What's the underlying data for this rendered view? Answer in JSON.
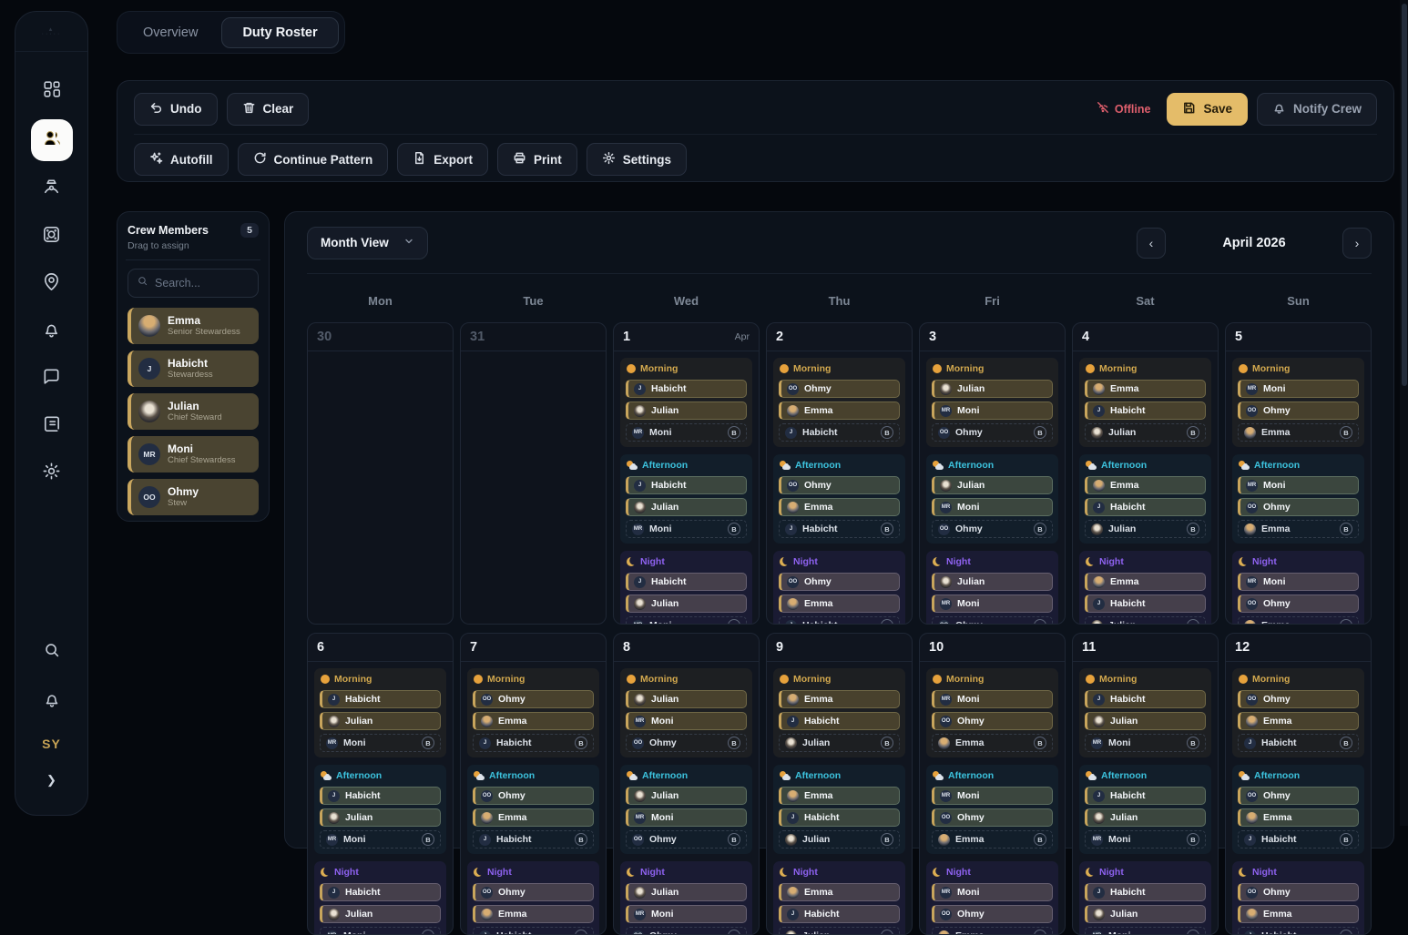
{
  "colors": {
    "page_bg": "#05080d",
    "panel_bg": "#0c121b",
    "accent_gold": "#c8a55c",
    "save_bg": "#e4bc69",
    "offline_red": "#df5f6d",
    "morning": "#d2a84e",
    "afternoon": "#3cc2dd",
    "night": "#8e62f0"
  },
  "icons": {
    "sidebar": [
      "dashboard-icon",
      "crew-users-icon",
      "captain-icon",
      "camera-icon",
      "map-pin-icon",
      "bell-icon",
      "chat-icon",
      "logbook-icon",
      "gear-icon",
      "search-icon",
      "bell-icon",
      "chevron-right-icon"
    ],
    "toolbar": [
      "undo-icon",
      "trash-icon",
      "wifi-off-icon",
      "save-disk-icon",
      "bell-icon",
      "sparkles-icon",
      "refresh-icon",
      "export-file-icon",
      "printer-icon",
      "gear-icon"
    ],
    "shifts": [
      "sun-icon",
      "cloud-sun-icon",
      "moon-icon"
    ]
  },
  "sidebar": {
    "user_initials": "SY"
  },
  "tabs": {
    "overview": "Overview",
    "duty_roster": "Duty Roster"
  },
  "toolbar": {
    "undo": "Undo",
    "clear": "Clear",
    "offline": "Offline",
    "save": "Save",
    "notify_crew": "Notify Crew",
    "autofill": "Autofill",
    "continue_pattern": "Continue Pattern",
    "export": "Export",
    "print": "Print",
    "settings": "Settings"
  },
  "crew_panel": {
    "title": "Crew Members",
    "count": "5",
    "subtitle": "Drag to assign",
    "search_placeholder": "Search...",
    "members": [
      {
        "name": "Emma",
        "role": "Senior Stewardess",
        "avatar": "photo",
        "initials": ""
      },
      {
        "name": "Habicht",
        "role": "Stewardess",
        "avatar": "initials",
        "initials": "J"
      },
      {
        "name": "Julian",
        "role": "Chief Steward",
        "avatar": "photo",
        "initials": ""
      },
      {
        "name": "Moni",
        "role": "Chief Stewardess",
        "avatar": "initials",
        "initials": "MR"
      },
      {
        "name": "Ohmy",
        "role": "Stew",
        "avatar": "initials",
        "initials": "OO"
      }
    ]
  },
  "calendar": {
    "view_label": "Month View",
    "month_label": "April 2026",
    "weekdays": [
      "Mon",
      "Tue",
      "Wed",
      "Thu",
      "Fri",
      "Sat",
      "Sun"
    ],
    "shifts": [
      {
        "name": "Morning",
        "type": "morning"
      },
      {
        "name": "Afternoon",
        "type": "afternoon"
      },
      {
        "name": "Night",
        "type": "night"
      }
    ],
    "backup_badge": "B",
    "days": [
      {
        "num": "30",
        "outside": true
      },
      {
        "num": "31",
        "outside": true
      },
      {
        "num": "1",
        "tag": "Apr",
        "assign": [
          "Habicht",
          "Julian",
          "Moni"
        ]
      },
      {
        "num": "2",
        "assign": [
          "Ohmy",
          "Emma",
          "Habicht"
        ]
      },
      {
        "num": "3",
        "assign": [
          "Julian",
          "Moni",
          "Ohmy"
        ]
      },
      {
        "num": "4",
        "assign": [
          "Emma",
          "Habicht",
          "Julian"
        ]
      },
      {
        "num": "5",
        "assign": [
          "Moni",
          "Ohmy",
          "Emma"
        ]
      },
      {
        "num": "6",
        "assign": [
          "Habicht",
          "Julian",
          "Moni"
        ]
      },
      {
        "num": "7",
        "assign": [
          "Ohmy",
          "Emma",
          "Habicht"
        ]
      },
      {
        "num": "8",
        "assign": [
          "Julian",
          "Moni",
          "Ohmy"
        ]
      },
      {
        "num": "9",
        "assign": [
          "Emma",
          "Habicht",
          "Julian"
        ]
      },
      {
        "num": "10",
        "assign": [
          "Moni",
          "Ohmy",
          "Emma"
        ]
      },
      {
        "num": "11",
        "assign": [
          "Habicht",
          "Julian",
          "Moni"
        ]
      },
      {
        "num": "12",
        "assign": [
          "Ohmy",
          "Emma",
          "Habicht"
        ]
      }
    ]
  }
}
